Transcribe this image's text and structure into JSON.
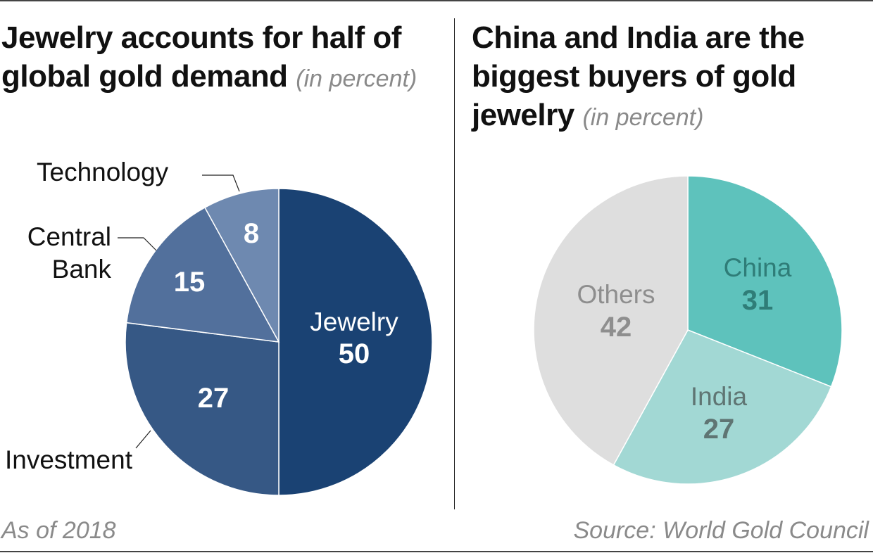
{
  "footer": {
    "note": "As of 2018",
    "source": "Source: World Gold Council"
  },
  "chart_data": [
    {
      "type": "pie",
      "title": "Jewelry accounts for half of global gold demand",
      "unit": "(in percent)",
      "slices": [
        {
          "label": "Jewelry",
          "value": 50,
          "color": "#1a4273"
        },
        {
          "label": "Investment",
          "value": 27,
          "color": "#365885"
        },
        {
          "label": "Central Bank",
          "value": 15,
          "color": "#52709c"
        },
        {
          "label": "Technology",
          "value": 8,
          "color": "#6e89b0"
        }
      ]
    },
    {
      "type": "pie",
      "title": "China and India are the biggest buyers of gold jewelry",
      "unit": "(in percent)",
      "slices": [
        {
          "label": "China",
          "value": 31,
          "color": "#5ec2bc"
        },
        {
          "label": "India",
          "value": 27,
          "color": "#a2d8d4"
        },
        {
          "label": "Others",
          "value": 42,
          "color": "#dedede"
        }
      ]
    }
  ]
}
